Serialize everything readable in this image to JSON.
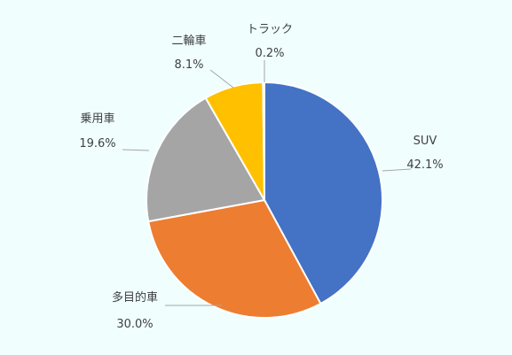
{
  "chart_data": {
    "type": "pie",
    "slices": [
      {
        "label": "SUV",
        "value": 42.1,
        "value_label": "42.1%",
        "color": "#4472C4"
      },
      {
        "label": "多目的車",
        "value": 30.0,
        "value_label": "30.0%",
        "color": "#ED7D31"
      },
      {
        "label": "乗用車",
        "value": 19.6,
        "value_label": "19.6%",
        "color": "#A5A5A5"
      },
      {
        "label": "二輪車",
        "value": 8.1,
        "value_label": "8.1%",
        "color": "#FFC000"
      },
      {
        "label": "トラック",
        "value": 0.2,
        "value_label": "0.2%",
        "color": "#5B9BD5"
      }
    ],
    "background": "#F0FEFE"
  }
}
